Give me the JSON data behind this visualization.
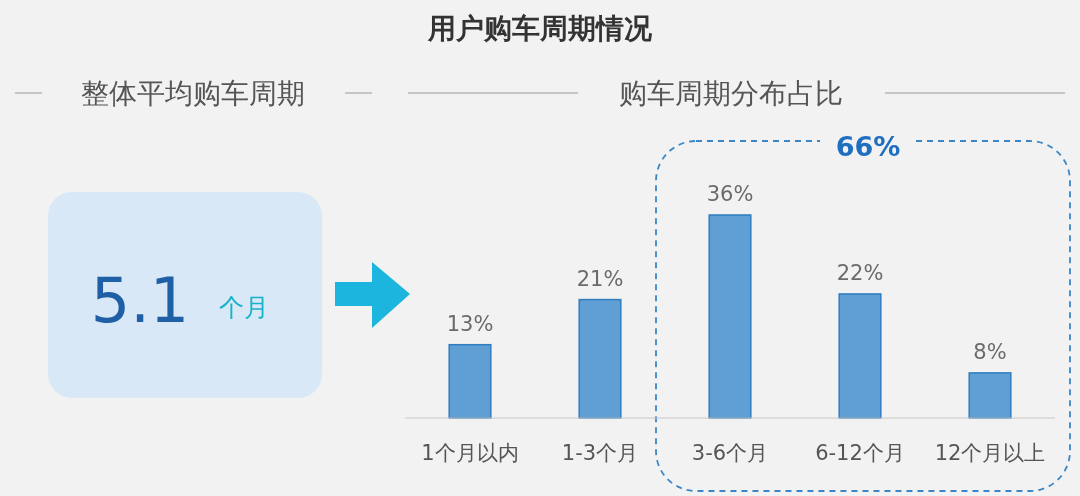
{
  "chart_data": {
    "type": "bar",
    "title": "用户购车周期情况",
    "subtitle": "购车周期分布占比",
    "categories": [
      "1个月以内",
      "1-3个月",
      "3-6个月",
      "6-12个月",
      "12个月以上"
    ],
    "values": [
      13,
      21,
      36,
      22,
      8
    ],
    "color": "#5f9fd3",
    "value_labels": [
      "13%",
      "21%",
      "36%",
      "22%",
      "8%"
    ],
    "annotations": [
      "整体平均购车周期",
      "5.1",
      "个月",
      "66%"
    ]
  }
}
